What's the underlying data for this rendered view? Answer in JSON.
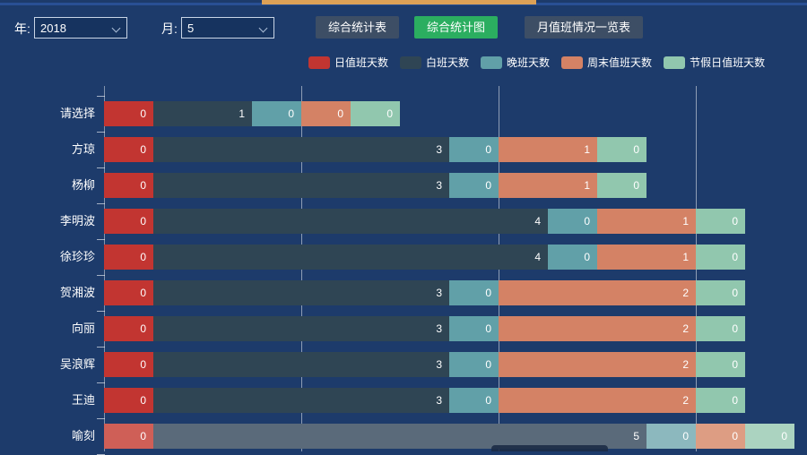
{
  "top_strip": {
    "accent_color": "#dda156",
    "line_color": "#2f5cab"
  },
  "form": {
    "year_label": "年:",
    "year_value": "2018",
    "month_label": "月:",
    "month_value": "5",
    "buttons": [
      {
        "label": "综合统计表",
        "active": false
      },
      {
        "label": "综合统计图",
        "active": true
      },
      {
        "label": "月值班情况一览表",
        "active": false
      }
    ],
    "active_button_color": "#2bae60",
    "inactive_button_color": "#3d4e65"
  },
  "chart_data": {
    "type": "bar",
    "orientation": "horizontal",
    "stacked": true,
    "title": "",
    "xlabel": "",
    "ylabel": "",
    "xlim": [
      0,
      8
    ],
    "gridline_values": [
      2,
      4,
      6
    ],
    "grid_on": true,
    "legend_position": "top",
    "categories": [
      "请选择",
      "方琼",
      "杨柳",
      "李明波",
      "徐珍珍",
      "贺湘波",
      "向丽",
      "吴浪辉",
      "王迪",
      "喻刻"
    ],
    "series": [
      {
        "name": "日值班天数",
        "color": "#c23531",
        "values": [
          0,
          0,
          0,
          0,
          0,
          0,
          0,
          0,
          0,
          0
        ]
      },
      {
        "name": "白班天数",
        "color": "#2f4554",
        "values": [
          1,
          3,
          3,
          4,
          4,
          3,
          3,
          3,
          3,
          5
        ]
      },
      {
        "name": "晚班天数",
        "color": "#61a0a8",
        "values": [
          0,
          0,
          0,
          0,
          0,
          0,
          0,
          0,
          0,
          0
        ]
      },
      {
        "name": "周末值班天数",
        "color": "#d48265",
        "values": [
          0,
          1,
          1,
          1,
          1,
          2,
          2,
          2,
          2,
          0
        ]
      },
      {
        "name": "节假日值班天数",
        "color": "#91c7ae",
        "values": [
          0,
          0,
          0,
          0,
          0,
          0,
          0,
          0,
          0,
          0
        ]
      }
    ],
    "highlighted_category": "喻刻",
    "highlight_colors": [
      "#cf5f57",
      "#5a6a7a",
      "#8cb8be",
      "#dd9d83",
      "#abd3c0"
    ],
    "value_label_color": "#ffffff"
  }
}
